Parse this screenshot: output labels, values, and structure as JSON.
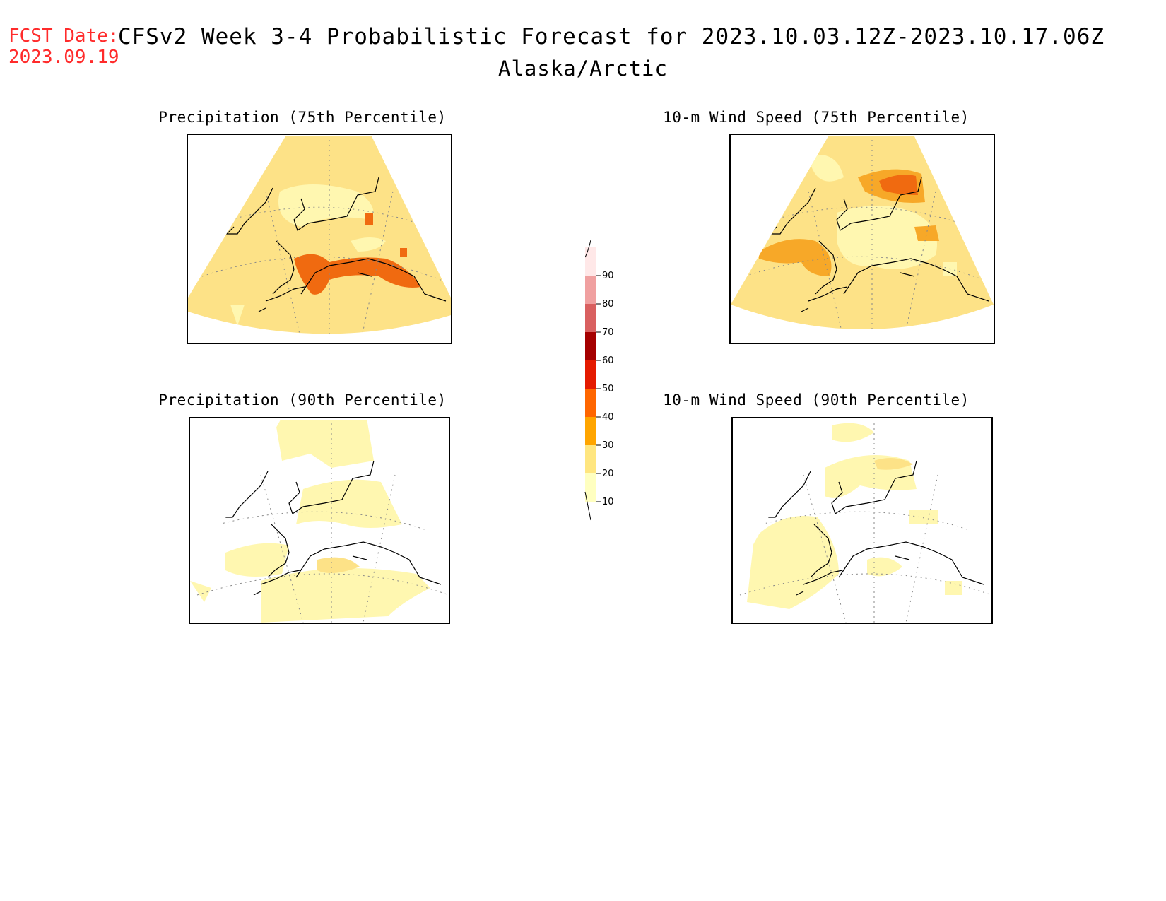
{
  "header": {
    "fcst_label": "FCST Date:",
    "fcst_date": "2023.09.19",
    "title": "CFSv2 Week 3-4 Probabilistic Forecast for 2023.10.03.12Z-2023.10.17.06Z",
    "region": "Alaska/Arctic"
  },
  "panels": [
    {
      "title": "Precipitation (75th Percentile)"
    },
    {
      "title": "10-m Wind Speed (75th Percentile)"
    },
    {
      "title": "Precipitation (90th Percentile)"
    },
    {
      "title": "10-m Wind Speed (90th Percentile)"
    }
  ],
  "colorbar": {
    "levels": [
      "10",
      "20",
      "30",
      "40",
      "50",
      "60",
      "70",
      "80",
      "90"
    ],
    "colors": [
      "#ffffc0",
      "#ffe680",
      "#ffa500",
      "#ff6600",
      "#e41a00",
      "#a50000",
      "#d96060",
      "#f0a0a0",
      "#ffe8e8"
    ]
  },
  "map_colors": {
    "c10": "#fff7b0",
    "c20": "#fde287",
    "c30": "#f7a828",
    "c40": "#f06a10",
    "coast": "#000000",
    "grid": "#888888"
  }
}
